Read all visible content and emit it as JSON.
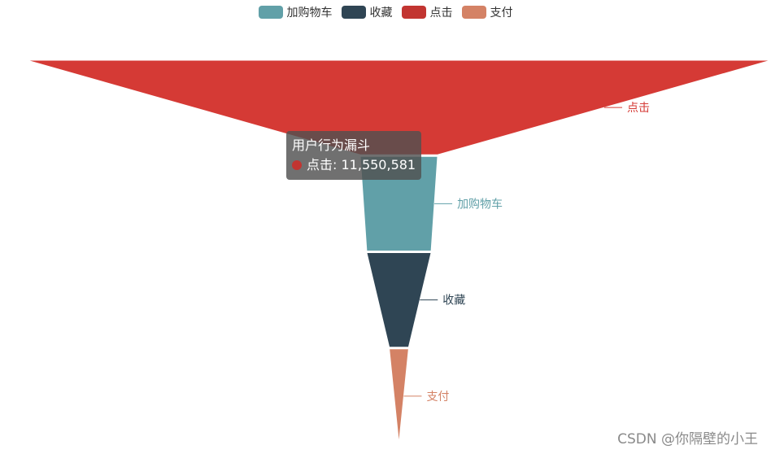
{
  "chart_data": {
    "type": "funnel",
    "title": "",
    "series_name": "用户行为漏斗",
    "legend": {
      "items": [
        "加购物车",
        "收藏",
        "点击",
        "支付"
      ],
      "placement": "top-center"
    },
    "sort": "descending",
    "data": [
      {
        "name": "点击",
        "value": 11550581,
        "color": "#d53a35"
      },
      {
        "name": "加购物车",
        "value": 1200000,
        "color": "#61a0a8"
      },
      {
        "name": "收藏",
        "value": 1000000,
        "color": "#2f4554"
      },
      {
        "name": "支付",
        "value": 300000,
        "color": "#d48265"
      }
    ],
    "colors": {
      "加购物车": "#61a0a8",
      "收藏": "#2f4554",
      "点击": "#c23531",
      "支付": "#d48265"
    }
  },
  "tooltip": {
    "title": "用户行为漏斗",
    "item_name": "点击",
    "item_value": "11,550,581",
    "dot_color": "#c23531"
  },
  "watermark": "CSDN @你隔壁的小王"
}
